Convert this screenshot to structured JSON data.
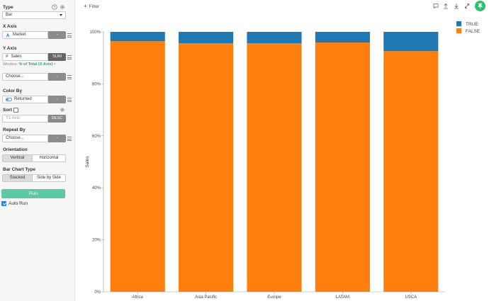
{
  "panel": {
    "type": {
      "title": "Type",
      "value": "Bar"
    },
    "x_axis": {
      "title": "X Axis",
      "field": "Market",
      "btn": "-"
    },
    "y_axis": {
      "title": "Y Axis",
      "field": "Sales",
      "agg": "SUM",
      "window_prefix": "Window:",
      "window_value": "% of Total (X Axis)",
      "window_remove": "×"
    },
    "choose_1": {
      "value": "Choose...",
      "btn": "-"
    },
    "color_by": {
      "title": "Color By",
      "field": "Returned",
      "btn": "-"
    },
    "sort": {
      "title": "Sort",
      "field": "Y1 Axis",
      "order": "DESC"
    },
    "repeat_by": {
      "title": "Repeat By",
      "value": "Choose...",
      "btn": "-"
    },
    "orientation": {
      "title": "Orientation",
      "options": [
        "Vertical",
        "Horizontal"
      ],
      "selected": "Vertical"
    },
    "bar_chart_type": {
      "title": "Bar Chart Type",
      "options": [
        "Stacked",
        "Side by Side"
      ],
      "selected": "Stacked"
    },
    "run_label": "Run",
    "auto_run_label": "Auto Run"
  },
  "topbar": {
    "filter_label": "Filter",
    "filter_plus": "+"
  },
  "colors": {
    "true": "#1f77b4",
    "false": "#ff7f0e",
    "run": "#5bc9a3",
    "pin": "#2fbf71"
  },
  "chart_data": {
    "type": "bar",
    "stacked": true,
    "categories": [
      "Africa",
      "Asia Pacific",
      "Europe",
      "LATAM",
      "USCA"
    ],
    "ylabel": "Sales",
    "yticks": [
      "0%",
      "20%",
      "40%",
      "60%",
      "80%",
      "100%"
    ],
    "ylim": [
      0,
      100
    ],
    "series": [
      {
        "name": "FALSE",
        "values": [
          96.4,
          95.6,
          95.6,
          95.9,
          92.6
        ]
      },
      {
        "name": "TRUE",
        "values": [
          3.6,
          4.4,
          4.4,
          4.1,
          7.4
        ]
      }
    ],
    "legend": [
      "TRUE",
      "FALSE"
    ],
    "legend_position": "top-right"
  }
}
